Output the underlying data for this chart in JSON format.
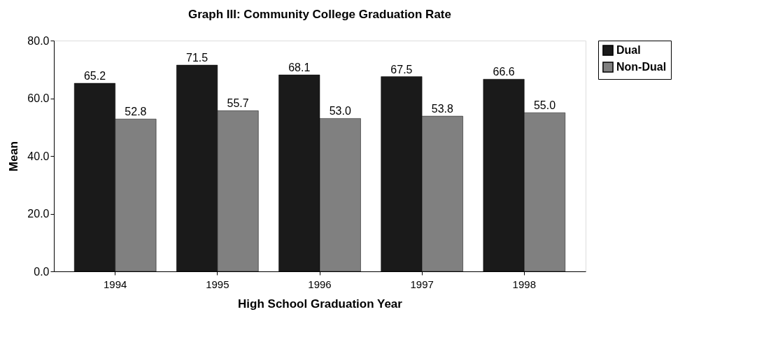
{
  "chart_data": {
    "type": "bar",
    "title": "Graph III: Community College Graduation Rate",
    "xlabel": "High School Graduation Year",
    "ylabel": "Mean",
    "categories": [
      "1994",
      "1995",
      "1996",
      "1997",
      "1998"
    ],
    "series": [
      {
        "name": "Dual",
        "color": "#1a1a1a",
        "values": [
          65.2,
          71.5,
          68.1,
          67.5,
          66.6
        ],
        "value_labels": [
          "65.2",
          "71.5",
          "68.1",
          "67.5",
          "66.6"
        ]
      },
      {
        "name": "Non-Dual",
        "color": "#808080",
        "values": [
          52.8,
          55.7,
          53.0,
          53.8,
          55.0
        ],
        "value_labels": [
          "52.8",
          "55.7",
          "53.0",
          "53.8",
          "55.0"
        ]
      }
    ],
    "ylim": [
      0,
      80
    ],
    "yticks": [
      {
        "value": 0,
        "label": "0.0"
      },
      {
        "value": 20,
        "label": "20.0"
      },
      {
        "value": 40,
        "label": "40.0"
      },
      {
        "value": 60,
        "label": "60.0"
      },
      {
        "value": 80,
        "label": "80.0"
      }
    ],
    "grid": false,
    "legend": "right"
  }
}
